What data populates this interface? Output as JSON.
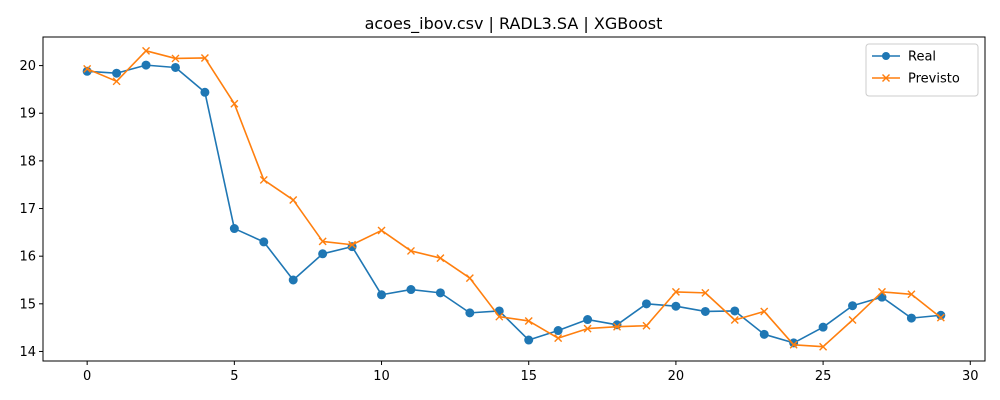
{
  "chart_data": {
    "type": "line",
    "title": "acoes_ibov.csv | RADL3.SA | XGBoost",
    "xlabel": "",
    "ylabel": "",
    "xlim": [
      -1.5,
      30.5
    ],
    "ylim": [
      13.8,
      20.6
    ],
    "xticks": [
      0,
      5,
      10,
      15,
      20,
      25,
      30
    ],
    "yticks": [
      14,
      15,
      16,
      17,
      18,
      19,
      20
    ],
    "grid": false,
    "legend_position": "top-right",
    "x": [
      0,
      1,
      2,
      3,
      4,
      5,
      6,
      7,
      8,
      9,
      10,
      11,
      12,
      13,
      14,
      15,
      16,
      17,
      18,
      19,
      20,
      21,
      22,
      23,
      24,
      25,
      26,
      27,
      28,
      29
    ],
    "series": [
      {
        "name": "Real",
        "color": "#1f77b4",
        "marker": "circle",
        "values": [
          19.88,
          19.84,
          20.01,
          19.96,
          19.44,
          16.58,
          16.3,
          15.5,
          16.05,
          16.2,
          15.19,
          15.3,
          15.23,
          14.81,
          14.85,
          14.24,
          14.44,
          14.67,
          14.56,
          15.0,
          14.95,
          14.84,
          14.85,
          14.36,
          14.18,
          14.51,
          14.96,
          15.14,
          14.7,
          14.76
        ]
      },
      {
        "name": "Previsto",
        "color": "#ff7f0e",
        "marker": "x",
        "values": [
          19.93,
          19.67,
          20.31,
          20.15,
          20.16,
          19.2,
          17.6,
          17.18,
          16.31,
          16.24,
          16.54,
          16.11,
          15.96,
          15.54,
          14.73,
          14.64,
          14.28,
          14.48,
          14.52,
          14.54,
          15.25,
          15.23,
          14.66,
          14.84,
          14.14,
          14.1,
          14.66,
          15.25,
          15.2,
          14.71
        ]
      }
    ]
  }
}
